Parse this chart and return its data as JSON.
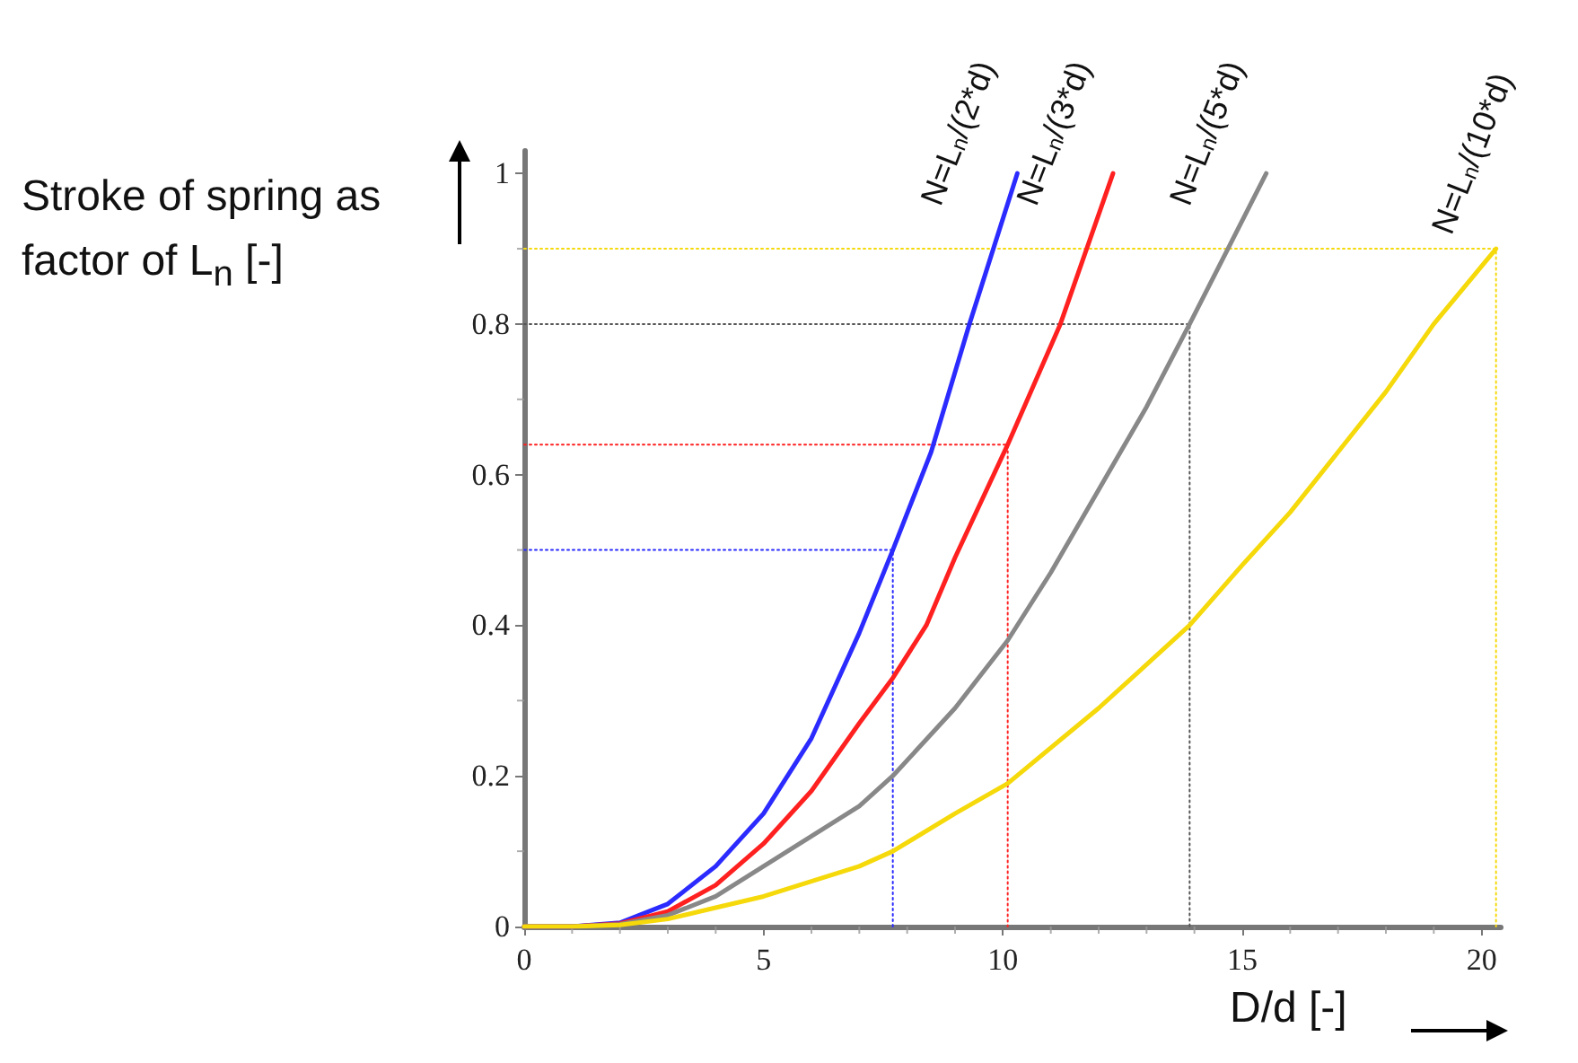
{
  "chart_data": {
    "type": "line",
    "xlabel": "D/d [-]",
    "ylabel": "Stroke of spring as factor of L$_{n}$ [-]",
    "xlim": [
      0,
      20.4
    ],
    "ylim": [
      0,
      1.03
    ],
    "xticks": [
      0,
      5,
      10,
      15,
      20
    ],
    "yticks": [
      0,
      0.2,
      0.4,
      0.6,
      0.8,
      1
    ],
    "grid": false,
    "legend": false,
    "marker": "none",
    "line_style": "solid",
    "series": [
      {
        "name": "N=L$_{n}$/(2*d)",
        "color": "#2b2bff",
        "x": [
          0,
          1,
          2,
          3,
          4,
          5,
          6,
          7,
          7.7,
          8.5,
          9.3,
          10.3
        ],
        "values": [
          0,
          0,
          0.005,
          0.03,
          0.08,
          0.15,
          0.25,
          0.39,
          0.5,
          0.63,
          0.8,
          1.0
        ]
      },
      {
        "name": "N=L$_{n}$/(3*d)",
        "color": "#ff2020",
        "x": [
          0,
          1,
          2,
          3,
          4,
          5,
          6,
          7,
          7.7,
          8.4,
          9,
          10.1,
          11.2,
          12.3
        ],
        "values": [
          0,
          0,
          0.004,
          0.02,
          0.055,
          0.11,
          0.18,
          0.27,
          0.33,
          0.4,
          0.49,
          0.64,
          0.8,
          1.0
        ]
      },
      {
        "name": "N=L$_{n}$/(5*d)",
        "color": "#888888",
        "x": [
          0,
          1,
          2,
          3,
          4,
          5,
          6,
          7,
          7.7,
          9,
          10.1,
          11,
          12,
          13,
          13.9,
          14.7,
          15.5
        ],
        "values": [
          0,
          0,
          0.003,
          0.015,
          0.04,
          0.08,
          0.12,
          0.16,
          0.2,
          0.29,
          0.38,
          0.47,
          0.58,
          0.69,
          0.8,
          0.9,
          1.0
        ]
      },
      {
        "name": "N=L$_{n}$/(10*d)",
        "color": "#f5d90a",
        "x": [
          0,
          1,
          2,
          3,
          4,
          5,
          6,
          7,
          7.7,
          9,
          10.1,
          12,
          13.9,
          15,
          16,
          17,
          18,
          19,
          20.3
        ],
        "values": [
          0,
          0,
          0.002,
          0.01,
          0.025,
          0.04,
          0.06,
          0.08,
          0.1,
          0.15,
          0.19,
          0.29,
          0.4,
          0.48,
          0.55,
          0.63,
          0.71,
          0.8,
          0.9
        ]
      },
      {
        "color": "#2b2bff",
        "line_style": "dotted",
        "x": [
          0,
          7.7,
          7.7
        ],
        "values": [
          0.5,
          0.5,
          0
        ]
      },
      {
        "color": "#ff2020",
        "line_style": "dotted",
        "x": [
          0,
          10.1,
          10.1
        ],
        "values": [
          0.64,
          0.64,
          0
        ]
      },
      {
        "color": "#555555",
        "line_style": "dotted",
        "x": [
          0,
          13.9,
          13.9
        ],
        "values": [
          0.8,
          0.8,
          0
        ]
      },
      {
        "color": "#f5d90a",
        "line_style": "dotted",
        "x": [
          0,
          20.3,
          20.3
        ],
        "values": [
          0.9,
          0.9,
          0
        ]
      }
    ]
  }
}
